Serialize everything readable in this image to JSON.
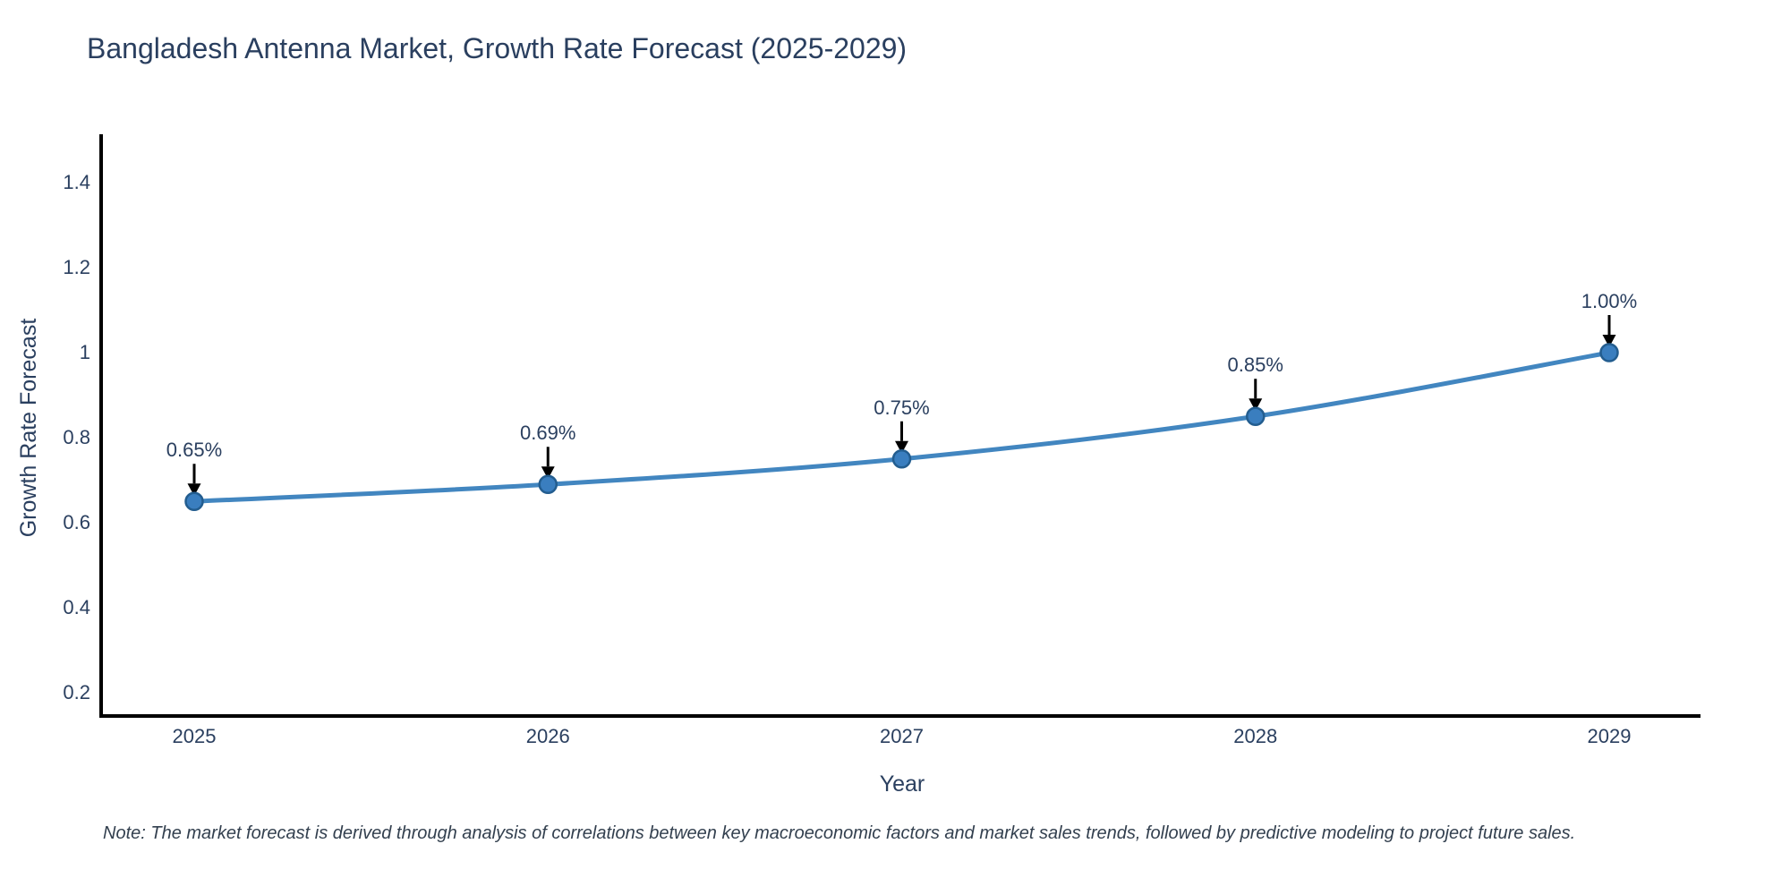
{
  "title": "Bangladesh Antenna Market, Growth Rate Forecast (2025-2029)",
  "note": "Note: The market forecast is derived through analysis of correlations between key macroeconomic factors and market sales trends, followed by predictive modeling to project future sales.",
  "chart_data": {
    "type": "line",
    "title": "Bangladesh Antenna Market, Growth Rate Forecast (2025-2029)",
    "xlabel": "Year",
    "ylabel": "Growth Rate Forecast",
    "categories": [
      "2025",
      "2026",
      "2027",
      "2028",
      "2029"
    ],
    "series": [
      {
        "name": "Growth Rate Forecast",
        "values": [
          0.65,
          0.69,
          0.75,
          0.85,
          1.0
        ],
        "point_labels": [
          "0.65%",
          "0.69%",
          "0.75%",
          "0.85%",
          "1.00%"
        ]
      }
    ],
    "yticks": [
      0.2,
      0.4,
      0.6,
      0.8,
      1,
      1.2,
      1.4
    ],
    "ytick_labels": [
      "0.2",
      "0.4",
      "0.6",
      "0.8",
      "1",
      "1.2",
      "1.4"
    ],
    "ylim": [
      0.145,
      1.515
    ],
    "grid": false,
    "legend": "none",
    "colors": {
      "line": "#4286c0",
      "marker_fill": "#3a7ebf",
      "marker_edge": "#235d8f",
      "arrow": "#000000",
      "axis_line": "#000000",
      "text": "#2a3f5f"
    }
  }
}
